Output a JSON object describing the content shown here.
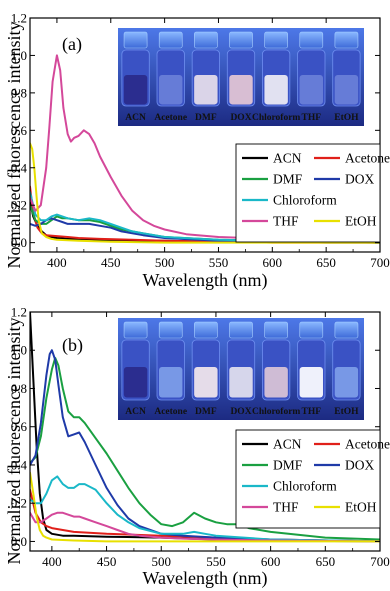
{
  "shared": {
    "ylabel": "Normalized fluorescence intensity",
    "xlabel": "Wavelength (nm)"
  },
  "chart_data": [
    {
      "type": "line",
      "panel_label": "(a)",
      "xlabel": "Wavelength (nm)",
      "ylabel": "Normalized fluorescence intensity",
      "xlim": [
        375,
        700
      ],
      "ylim": [
        -0.05,
        1.2
      ],
      "xticks": [
        "400",
        "450",
        "500",
        "550",
        "600",
        "650",
        "700"
      ],
      "yticks": [
        "0.0",
        "0.2",
        "0.4",
        "0.6",
        "0.8",
        "1.0",
        "1.2"
      ],
      "legend_position": "right-middle",
      "photo": {
        "vial_labels": [
          "ACN",
          "Acetone",
          "DMF",
          "DOX",
          "Chloroform",
          "THF",
          "EtOH"
        ],
        "emission_colors": [
          "#2a2a8a",
          "#6a80d8",
          "#e8e0ea",
          "#e6c8d4",
          "#f0eef4",
          "#6a80d8",
          "#6a80d8"
        ]
      },
      "series": [
        {
          "name": "ACN",
          "color": "#000000",
          "x": [
            375,
            378,
            382,
            386,
            390,
            395,
            400,
            410,
            420,
            440,
            470,
            500,
            550,
            600,
            700
          ],
          "y": [
            0.22,
            0.14,
            0.09,
            0.06,
            0.04,
            0.03,
            0.025,
            0.02,
            0.02,
            0.015,
            0.01,
            0.01,
            0.005,
            0.005,
            0.0
          ]
        },
        {
          "name": "Acetone",
          "color": "#e0201a",
          "x": [
            375,
            378,
            382,
            386,
            390,
            400,
            410,
            420,
            440,
            470,
            500,
            550,
            600,
            700
          ],
          "y": [
            0.3,
            0.16,
            0.08,
            0.05,
            0.04,
            0.035,
            0.03,
            0.025,
            0.02,
            0.015,
            0.01,
            0.005,
            0.0,
            0.0
          ]
        },
        {
          "name": "DMF",
          "color": "#1aa041",
          "x": [
            375,
            380,
            385,
            390,
            395,
            400,
            405,
            410,
            420,
            430,
            440,
            450,
            460,
            470,
            480,
            500,
            550,
            600,
            650,
            700
          ],
          "y": [
            0.2,
            0.12,
            0.1,
            0.1,
            0.12,
            0.14,
            0.13,
            0.13,
            0.12,
            0.12,
            0.11,
            0.09,
            0.07,
            0.06,
            0.05,
            0.03,
            0.015,
            0.01,
            0.005,
            0.0
          ]
        },
        {
          "name": "DOX",
          "color": "#1f3aa8",
          "x": [
            375,
            380,
            385,
            390,
            395,
            400,
            405,
            410,
            420,
            430,
            440,
            450,
            460,
            470,
            480,
            500,
            550,
            600,
            650,
            700
          ],
          "y": [
            0.1,
            0.09,
            0.1,
            0.12,
            0.13,
            0.12,
            0.11,
            0.1,
            0.1,
            0.1,
            0.09,
            0.08,
            0.06,
            0.05,
            0.04,
            0.025,
            0.01,
            0.005,
            0.0,
            0.0
          ]
        },
        {
          "name": "Chloroform",
          "color": "#1ab8c8",
          "x": [
            375,
            380,
            385,
            390,
            395,
            400,
            405,
            410,
            420,
            430,
            440,
            450,
            460,
            470,
            480,
            500,
            550,
            600,
            650,
            700
          ],
          "y": [
            0.27,
            0.15,
            0.12,
            0.12,
            0.14,
            0.15,
            0.14,
            0.13,
            0.12,
            0.13,
            0.12,
            0.1,
            0.08,
            0.06,
            0.05,
            0.03,
            0.015,
            0.01,
            0.005,
            0.0
          ]
        },
        {
          "name": "THF",
          "color": "#d4489a",
          "x": [
            375,
            380,
            385,
            390,
            393,
            396,
            400,
            403,
            406,
            410,
            413,
            416,
            420,
            425,
            430,
            435,
            440,
            450,
            460,
            470,
            480,
            490,
            500,
            520,
            550,
            600,
            650,
            700
          ],
          "y": [
            0.24,
            0.17,
            0.2,
            0.4,
            0.62,
            0.86,
            1.0,
            0.92,
            0.72,
            0.58,
            0.54,
            0.56,
            0.57,
            0.6,
            0.58,
            0.53,
            0.46,
            0.35,
            0.25,
            0.17,
            0.12,
            0.09,
            0.07,
            0.045,
            0.03,
            0.02,
            0.01,
            0.005
          ]
        },
        {
          "name": "EtOH",
          "color": "#e8e000",
          "x": [
            375,
            377,
            379,
            381,
            383,
            386,
            390,
            395,
            400,
            420,
            450,
            500,
            600,
            700
          ],
          "y": [
            0.53,
            0.5,
            0.4,
            0.25,
            0.12,
            0.05,
            0.03,
            0.02,
            0.015,
            0.01,
            0.005,
            0.0,
            0.0,
            0.0
          ]
        }
      ]
    },
    {
      "type": "line",
      "panel_label": "(b)",
      "xlabel": "Wavelength (nm)",
      "ylabel": "Normalized fluorescence intensity",
      "xlim": [
        380,
        700
      ],
      "ylim": [
        -0.05,
        1.2
      ],
      "xticks": [
        "400",
        "450",
        "500",
        "550",
        "600",
        "650",
        "700"
      ],
      "yticks": [
        "0.0",
        "0.2",
        "0.4",
        "0.6",
        "0.8",
        "1.0",
        "1.2"
      ],
      "legend_position": "right-middle",
      "photo": {
        "vial_labels": [
          "ACN",
          "Acetone",
          "DMF",
          "DOX",
          "Chloroform",
          "THF",
          "EtOH"
        ],
        "emission_colors": [
          "#2a2a8a",
          "#7e9ee8",
          "#f4e8ec",
          "#e4e2ee",
          "#dcc6d6",
          "#ffffff",
          "#7e9ee8"
        ]
      },
      "series": [
        {
          "name": "ACN",
          "color": "#000000",
          "x": [
            380,
            383,
            386,
            389,
            392,
            395,
            400,
            410,
            420,
            450,
            500,
            550,
            600,
            700
          ],
          "y": [
            1.2,
            0.85,
            0.5,
            0.25,
            0.12,
            0.06,
            0.04,
            0.03,
            0.03,
            0.025,
            0.02,
            0.01,
            0.005,
            0.0
          ]
        },
        {
          "name": "Acetone",
          "color": "#e0201a",
          "x": [
            380,
            385,
            390,
            395,
            400,
            410,
            420,
            450,
            500,
            550,
            600,
            700
          ],
          "y": [
            0.27,
            0.15,
            0.1,
            0.08,
            0.07,
            0.06,
            0.05,
            0.04,
            0.03,
            0.02,
            0.01,
            0.0
          ]
        },
        {
          "name": "DMF",
          "color": "#1aa041",
          "x": [
            380,
            385,
            390,
            395,
            400,
            403,
            406,
            410,
            415,
            420,
            425,
            430,
            440,
            450,
            460,
            470,
            480,
            490,
            500,
            510,
            520,
            530,
            540,
            550,
            560,
            570,
            580,
            600,
            650,
            700
          ],
          "y": [
            0.41,
            0.44,
            0.55,
            0.75,
            0.9,
            0.96,
            0.92,
            0.8,
            0.68,
            0.65,
            0.65,
            0.62,
            0.54,
            0.46,
            0.37,
            0.28,
            0.2,
            0.14,
            0.09,
            0.08,
            0.1,
            0.15,
            0.12,
            0.1,
            0.09,
            0.09,
            0.07,
            0.05,
            0.02,
            0.01
          ]
        },
        {
          "name": "DOX",
          "color": "#1f3aa8",
          "x": [
            380,
            385,
            390,
            395,
            398,
            400,
            403,
            406,
            410,
            415,
            420,
            425,
            430,
            440,
            450,
            460,
            470,
            480,
            500,
            520,
            550,
            600,
            700
          ],
          "y": [
            0.4,
            0.45,
            0.62,
            0.87,
            0.98,
            1.0,
            0.95,
            0.82,
            0.65,
            0.55,
            0.56,
            0.57,
            0.52,
            0.4,
            0.28,
            0.19,
            0.12,
            0.08,
            0.04,
            0.03,
            0.02,
            0.01,
            0.0
          ]
        },
        {
          "name": "Chloroform",
          "color": "#1ab8c8",
          "x": [
            380,
            385,
            390,
            395,
            400,
            405,
            410,
            415,
            420,
            425,
            430,
            440,
            450,
            460,
            470,
            480,
            500,
            520,
            530,
            540,
            550,
            600,
            700
          ],
          "y": [
            0.22,
            0.2,
            0.2,
            0.25,
            0.32,
            0.34,
            0.3,
            0.28,
            0.28,
            0.3,
            0.3,
            0.27,
            0.2,
            0.14,
            0.1,
            0.07,
            0.04,
            0.04,
            0.05,
            0.04,
            0.03,
            0.01,
            0.0
          ]
        },
        {
          "name": "THF",
          "color": "#d4489a",
          "x": [
            380,
            385,
            390,
            395,
            400,
            405,
            410,
            415,
            420,
            425,
            430,
            440,
            450,
            460,
            470,
            480,
            500,
            520,
            550,
            600,
            700
          ],
          "y": [
            0.15,
            0.1,
            0.1,
            0.12,
            0.14,
            0.15,
            0.15,
            0.14,
            0.13,
            0.13,
            0.12,
            0.1,
            0.08,
            0.06,
            0.04,
            0.03,
            0.02,
            0.015,
            0.01,
            0.005,
            0.0
          ]
        },
        {
          "name": "EtOH",
          "color": "#e8e000",
          "x": [
            380,
            383,
            386,
            389,
            392,
            395,
            400,
            420,
            450,
            500,
            600,
            700
          ],
          "y": [
            0.36,
            0.25,
            0.13,
            0.06,
            0.03,
            0.02,
            0.01,
            0.005,
            0.0,
            0.0,
            0.0,
            0.0
          ]
        }
      ]
    }
  ]
}
